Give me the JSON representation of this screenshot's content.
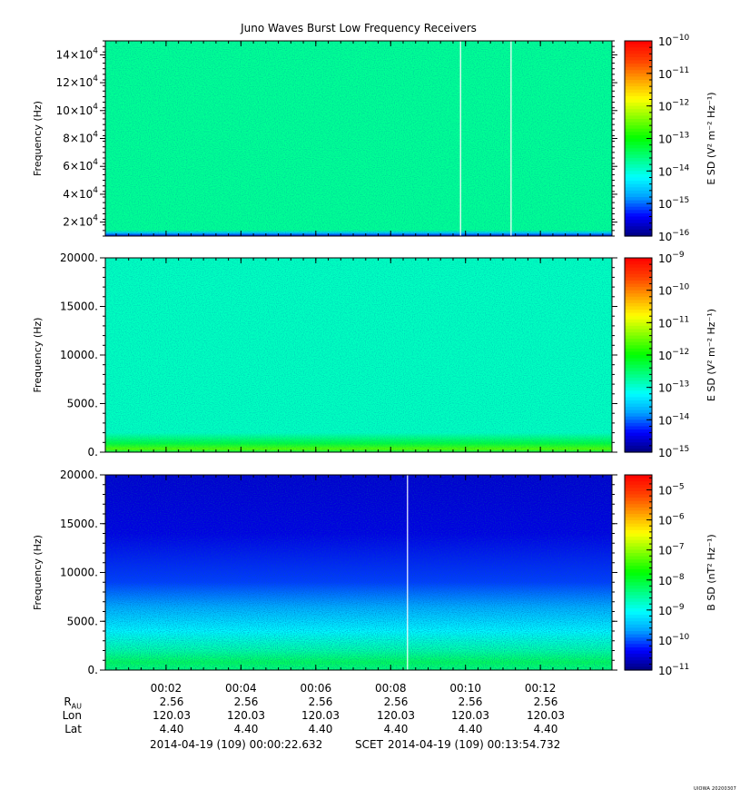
{
  "title": "Juno Waves Burst Low Frequency Receivers",
  "colors": {
    "colormap": [
      "#000080",
      "#0000ff",
      "#00a0ff",
      "#00ffff",
      "#00ff80",
      "#00ff00",
      "#80ff00",
      "#ffff00",
      "#ffa000",
      "#ff4000",
      "#ff0000"
    ],
    "background": "#ffffff",
    "axis": "#000000"
  },
  "chart_data": [
    {
      "type": "heatmap",
      "name": "panel-1",
      "ylabel": "Frequency (Hz)",
      "y_ticks": [
        "2×10^4",
        "4×10^4",
        "6×10^4",
        "8×10^4",
        "10×10^4",
        "12×10^4",
        "14×10^4"
      ],
      "y_tick_values": [
        20000,
        40000,
        60000,
        80000,
        100000,
        120000,
        140000
      ],
      "ylim": [
        10000,
        150000
      ],
      "colorbar": {
        "label": "E SD (V² m⁻² Hz⁻¹)",
        "exponents": [
          -16,
          -15,
          -14,
          -13,
          -12,
          -11,
          -10
        ],
        "range": [
          -16,
          -10
        ]
      },
      "field_level": -13.7,
      "low_freq_band": null,
      "gap_lines_time": [
        "00:09:52",
        "00:11:13"
      ]
    },
    {
      "type": "heatmap",
      "name": "panel-2",
      "ylabel": "Frequency (Hz)",
      "y_ticks": [
        "0.",
        "5000.",
        "10000.",
        "15000.",
        "20000."
      ],
      "y_tick_values": [
        0,
        5000,
        10000,
        15000,
        20000
      ],
      "ylim": [
        0,
        20000
      ],
      "colorbar": {
        "label": "E SD (V² m⁻² Hz⁻¹)",
        "exponents": [
          -15,
          -14,
          -13,
          -12,
          -11,
          -10,
          -9
        ],
        "range": [
          -15,
          -9
        ]
      },
      "field_level": -12.9,
      "low_freq_band": "yellow-green below ~500 Hz",
      "gap_lines_time": []
    },
    {
      "type": "heatmap",
      "name": "panel-3",
      "ylabel": "Frequency (Hz)",
      "y_ticks": [
        "0.",
        "5000.",
        "10000.",
        "15000.",
        "20000."
      ],
      "y_tick_values": [
        0,
        5000,
        10000,
        15000,
        20000
      ],
      "ylim": [
        0,
        20000
      ],
      "colorbar": {
        "label": "B SD (nT² Hz⁻¹)",
        "exponents": [
          -11,
          -10,
          -9,
          -8,
          -7,
          -6,
          -5
        ],
        "range": [
          -11,
          -4.5
        ]
      },
      "field_level": -10.3,
      "low_freq_band": "green below ~1500 Hz, cyan to ~6000 Hz",
      "gap_lines_time": [
        "00:08:27"
      ]
    }
  ],
  "x_axis": {
    "ticks": [
      "00:02",
      "00:04",
      "00:06",
      "00:08",
      "00:10",
      "00:12"
    ],
    "tick_minutes": [
      2,
      4,
      6,
      8,
      10,
      12
    ],
    "start": "2014-04-19 (109) 00:00:22.632",
    "end": "2014-04-19 (109) 00:13:54.732",
    "scale_label": "SCET"
  },
  "ephemeris": {
    "labels": {
      "rau_main": "R",
      "rau_sub": "AU",
      "lon": "Lon",
      "lat": "Lat"
    },
    "rau": [
      "2.56",
      "2.56",
      "2.56",
      "2.56",
      "2.56",
      "2.56"
    ],
    "lon": [
      "120.03",
      "120.03",
      "120.03",
      "120.03",
      "120.03",
      "120.03"
    ],
    "lat": [
      "4.40",
      "4.40",
      "4.40",
      "4.40",
      "4.40",
      "4.40"
    ]
  },
  "stamp": "UIOWA 20200307"
}
